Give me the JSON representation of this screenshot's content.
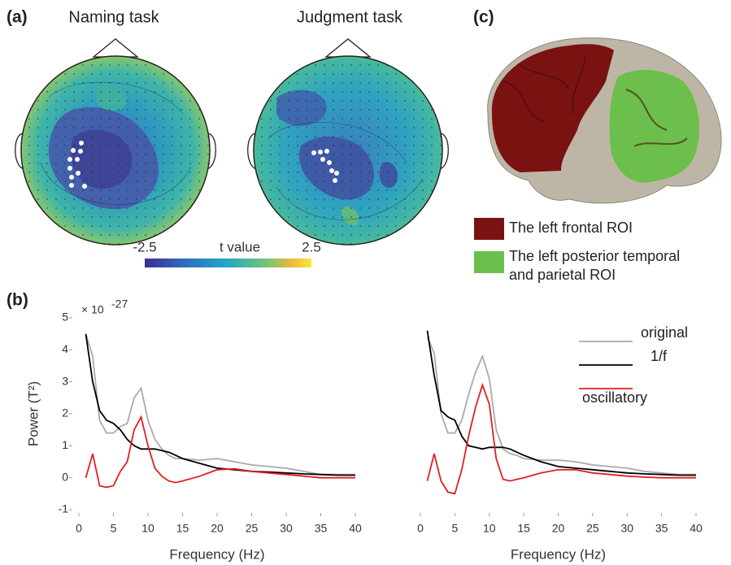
{
  "panel_labels": {
    "a": "(a)",
    "b": "(b)",
    "c": "(c)"
  },
  "topomaps": {
    "titles": [
      "Naming task",
      "Judgment task"
    ],
    "colorbar": {
      "label": "t value",
      "lim": [
        -2.5,
        2.5
      ],
      "ticks": [
        -2.5,
        2.5
      ]
    }
  },
  "roi_legend": [
    {
      "lines": [
        "The left frontal ROI"
      ],
      "color": "#7a1212"
    },
    {
      "lines": [
        "The left posterior temporal",
        "and parietal ROI"
      ],
      "color": "#6cbf4c"
    }
  ],
  "chart_data": [
    {
      "type": "line",
      "y_scale": {
        "base": "× 10",
        "exponent": "-27"
      },
      "xlabel": "Frequency (Hz)",
      "ylabel": "Power (T²)",
      "x": [
        1,
        2,
        3,
        4,
        5,
        6,
        7,
        8,
        9,
        10,
        11,
        12,
        13,
        14,
        15,
        17.5,
        20,
        22.5,
        25,
        27.5,
        30,
        32.5,
        35,
        37.5,
        40
      ],
      "xlim": [
        0,
        40
      ],
      "xticks": [
        0,
        5,
        10,
        15,
        20,
        25,
        30,
        35,
        40
      ],
      "ylim": [
        -1,
        5
      ],
      "yticks": [
        -1,
        0,
        1,
        2,
        3,
        4,
        5
      ],
      "series": [
        {
          "name": "original",
          "color": "#aaaaaa",
          "values": [
            4.5,
            3.8,
            1.8,
            1.4,
            1.4,
            1.6,
            1.7,
            2.5,
            2.8,
            1.8,
            1.2,
            0.9,
            0.7,
            0.6,
            0.6,
            0.55,
            0.6,
            0.5,
            0.4,
            0.35,
            0.3,
            0.2,
            0.1,
            0.1,
            0.1
          ]
        },
        {
          "name": "1/f",
          "color": "#000000",
          "values": [
            4.5,
            3.0,
            2.1,
            1.8,
            1.7,
            1.5,
            1.2,
            1.0,
            0.9,
            0.9,
            0.9,
            0.85,
            0.8,
            0.7,
            0.6,
            0.45,
            0.3,
            0.25,
            0.2,
            0.18,
            0.15,
            0.12,
            0.1,
            0.08,
            0.08
          ]
        },
        {
          "name": "oscillatory",
          "color": "#e02020",
          "values": [
            0,
            0.75,
            -0.25,
            -0.3,
            -0.25,
            0.2,
            0.5,
            1.5,
            1.9,
            1.0,
            0.3,
            0.05,
            -0.1,
            -0.15,
            -0.1,
            0.05,
            0.25,
            0.28,
            0.2,
            0.15,
            0.1,
            0.05,
            0,
            0,
            0
          ]
        }
      ]
    },
    {
      "type": "line",
      "xlabel": "Frequency (Hz)",
      "x": [
        1,
        2,
        3,
        4,
        5,
        6,
        7,
        8,
        9,
        10,
        11,
        12,
        13,
        14,
        15,
        17.5,
        20,
        22.5,
        25,
        27.5,
        30,
        32.5,
        35,
        37.5,
        40
      ],
      "xlim": [
        0,
        40
      ],
      "xticks": [
        0,
        5,
        10,
        15,
        20,
        25,
        30,
        35,
        40
      ],
      "ylim": [
        -1,
        5
      ],
      "legend": "upper right",
      "series": [
        {
          "name": "original",
          "color": "#aaaaaa",
          "values": [
            4.4,
            3.9,
            2.0,
            1.4,
            1.4,
            1.8,
            2.6,
            3.3,
            3.8,
            3.1,
            1.5,
            0.9,
            0.75,
            0.7,
            0.6,
            0.55,
            0.55,
            0.5,
            0.4,
            0.35,
            0.3,
            0.2,
            0.15,
            0.1,
            0.1
          ]
        },
        {
          "name": "1/f",
          "color": "#000000",
          "values": [
            4.6,
            3.2,
            2.1,
            1.9,
            1.8,
            1.3,
            1.0,
            0.95,
            0.9,
            0.95,
            0.95,
            0.95,
            0.9,
            0.8,
            0.7,
            0.5,
            0.35,
            0.3,
            0.25,
            0.2,
            0.15,
            0.12,
            0.1,
            0.08,
            0.08
          ]
        },
        {
          "name": "oscillatory",
          "color": "#e02020",
          "values": [
            -0.1,
            0.75,
            -0.1,
            -0.45,
            -0.5,
            0.25,
            1.3,
            2.2,
            2.9,
            2.3,
            0.6,
            -0.05,
            -0.1,
            -0.05,
            0,
            0.15,
            0.25,
            0.25,
            0.15,
            0.1,
            0.05,
            0.02,
            0,
            0,
            0
          ]
        }
      ]
    }
  ]
}
